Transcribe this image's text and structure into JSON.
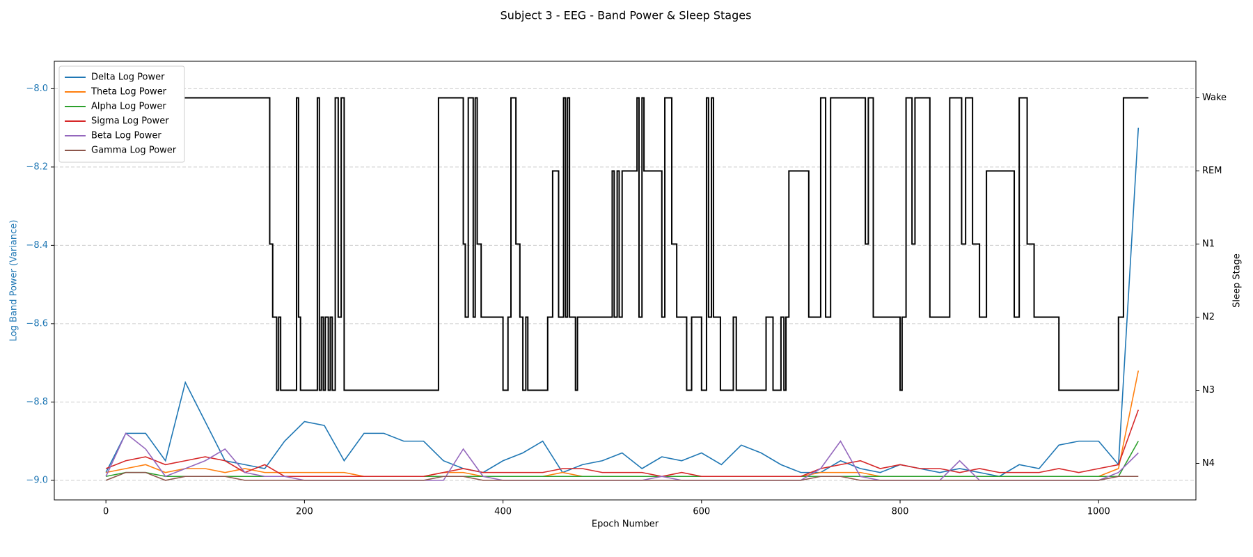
{
  "chart_data": {
    "type": "line",
    "title": "Subject 3 - EEG - Band Power & Sleep Stages",
    "x_label": "Epoch Number",
    "y_label": "Log Band Power (Variance)",
    "y2_label": "Sleep Stage",
    "y_label_color": "#1f77b4",
    "grid": true,
    "legend": "upper-left",
    "xlim": [
      -52,
      1098
    ],
    "xticks": [
      0,
      200,
      400,
      600,
      800,
      1000
    ],
    "ylim": [
      -9.05,
      -7.93
    ],
    "yticks": [
      {
        "value": -9.0,
        "label": "−9.0"
      },
      {
        "value": -8.8,
        "label": "−8.8"
      },
      {
        "value": -8.6,
        "label": "−8.6"
      },
      {
        "value": -8.4,
        "label": "−8.4"
      },
      {
        "value": -8.2,
        "label": "−8.2"
      },
      {
        "value": -8.0,
        "label": "−8.0"
      }
    ],
    "y2lim": [
      -0.5,
      5.5
    ],
    "y2ticks": [
      {
        "value": 0,
        "label": "N4"
      },
      {
        "value": 1,
        "label": "N3"
      },
      {
        "value": 2,
        "label": "N2"
      },
      {
        "value": 3,
        "label": "N1"
      },
      {
        "value": 4,
        "label": "REM"
      },
      {
        "value": 5,
        "label": "Wake"
      }
    ],
    "x": [
      0,
      20,
      40,
      60,
      80,
      100,
      120,
      140,
      160,
      180,
      200,
      220,
      240,
      260,
      280,
      300,
      320,
      340,
      360,
      380,
      400,
      420,
      440,
      460,
      480,
      500,
      520,
      540,
      560,
      580,
      600,
      620,
      640,
      660,
      680,
      700,
      720,
      740,
      760,
      780,
      800,
      820,
      840,
      860,
      880,
      900,
      920,
      940,
      960,
      980,
      1000,
      1020,
      1040
    ],
    "series": [
      {
        "name": "Delta Log Power",
        "color": "#1f77b4",
        "values": [
          -8.98,
          -8.88,
          -8.88,
          -8.95,
          -8.75,
          -8.85,
          -8.95,
          -8.96,
          -8.97,
          -8.9,
          -8.85,
          -8.86,
          -8.95,
          -8.88,
          -8.88,
          -8.9,
          -8.9,
          -8.95,
          -8.97,
          -8.98,
          -8.95,
          -8.93,
          -8.9,
          -8.98,
          -8.96,
          -8.95,
          -8.93,
          -8.97,
          -8.94,
          -8.95,
          -8.93,
          -8.96,
          -8.91,
          -8.93,
          -8.96,
          -8.98,
          -8.98,
          -8.95,
          -8.97,
          -8.98,
          -8.96,
          -8.97,
          -8.98,
          -8.97,
          -8.98,
          -8.99,
          -8.96,
          -8.97,
          -8.91,
          -8.9,
          -8.9,
          -8.96,
          -8.1
        ]
      },
      {
        "name": "Theta Log Power",
        "color": "#ff7f0e",
        "values": [
          -8.98,
          -8.97,
          -8.96,
          -8.98,
          -8.97,
          -8.97,
          -8.98,
          -8.97,
          -8.98,
          -8.98,
          -8.98,
          -8.98,
          -8.98,
          -8.99,
          -8.99,
          -8.99,
          -8.99,
          -8.98,
          -8.98,
          -8.99,
          -8.99,
          -8.99,
          -8.99,
          -8.98,
          -8.99,
          -8.99,
          -8.99,
          -8.99,
          -8.99,
          -8.99,
          -8.99,
          -8.99,
          -8.99,
          -8.99,
          -8.99,
          -8.99,
          -8.98,
          -8.98,
          -8.98,
          -8.99,
          -8.99,
          -8.99,
          -8.99,
          -8.99,
          -8.99,
          -8.99,
          -8.99,
          -8.99,
          -8.99,
          -8.99,
          -8.99,
          -8.97,
          -8.72
        ]
      },
      {
        "name": "Alpha Log Power",
        "color": "#2ca02c",
        "values": [
          -8.99,
          -8.98,
          -8.98,
          -8.99,
          -8.99,
          -8.99,
          -8.99,
          -8.99,
          -8.99,
          -8.99,
          -8.99,
          -8.99,
          -8.99,
          -8.99,
          -8.99,
          -8.99,
          -8.99,
          -8.99,
          -8.99,
          -8.99,
          -8.99,
          -8.99,
          -8.99,
          -8.99,
          -8.99,
          -8.99,
          -8.99,
          -8.99,
          -8.99,
          -8.99,
          -8.99,
          -8.99,
          -8.99,
          -8.99,
          -8.99,
          -8.99,
          -8.99,
          -8.99,
          -8.99,
          -8.99,
          -8.99,
          -8.99,
          -8.99,
          -8.99,
          -8.99,
          -8.99,
          -8.99,
          -8.99,
          -8.99,
          -8.99,
          -8.99,
          -8.99,
          -8.9
        ]
      },
      {
        "name": "Sigma Log Power",
        "color": "#d62728",
        "values": [
          -8.97,
          -8.95,
          -8.94,
          -8.96,
          -8.95,
          -8.94,
          -8.95,
          -8.98,
          -8.96,
          -8.99,
          -8.99,
          -8.99,
          -8.99,
          -8.99,
          -8.99,
          -8.99,
          -8.99,
          -8.98,
          -8.97,
          -8.98,
          -8.98,
          -8.98,
          -8.98,
          -8.97,
          -8.97,
          -8.98,
          -8.98,
          -8.98,
          -8.99,
          -8.98,
          -8.99,
          -8.99,
          -8.99,
          -8.99,
          -8.99,
          -8.99,
          -8.97,
          -8.96,
          -8.95,
          -8.97,
          -8.96,
          -8.97,
          -8.97,
          -8.98,
          -8.97,
          -8.98,
          -8.98,
          -8.98,
          -8.97,
          -8.98,
          -8.97,
          -8.96,
          -8.82
        ]
      },
      {
        "name": "Beta Log Power",
        "color": "#9467bd",
        "values": [
          -8.99,
          -8.88,
          -8.92,
          -8.99,
          -8.97,
          -8.95,
          -8.92,
          -8.98,
          -8.99,
          -8.99,
          -9.0,
          -9.0,
          -9.0,
          -9.0,
          -9.0,
          -9.0,
          -9.0,
          -9.0,
          -8.92,
          -8.99,
          -9.0,
          -9.0,
          -9.0,
          -9.0,
          -9.0,
          -9.0,
          -9.0,
          -9.0,
          -8.99,
          -9.0,
          -9.0,
          -9.0,
          -9.0,
          -9.0,
          -9.0,
          -9.0,
          -8.97,
          -8.9,
          -8.99,
          -9.0,
          -9.0,
          -9.0,
          -9.0,
          -8.95,
          -9.0,
          -9.0,
          -9.0,
          -9.0,
          -9.0,
          -9.0,
          -9.0,
          -8.98,
          -8.93
        ]
      },
      {
        "name": "Gamma Log Power",
        "color": "#8c564b",
        "values": [
          -9.0,
          -8.98,
          -8.98,
          -9.0,
          -8.99,
          -8.99,
          -8.99,
          -9.0,
          -9.0,
          -9.0,
          -9.0,
          -9.0,
          -9.0,
          -9.0,
          -9.0,
          -9.0,
          -9.0,
          -8.99,
          -8.99,
          -9.0,
          -9.0,
          -9.0,
          -9.0,
          -9.0,
          -9.0,
          -9.0,
          -9.0,
          -9.0,
          -9.0,
          -9.0,
          -9.0,
          -9.0,
          -9.0,
          -9.0,
          -9.0,
          -9.0,
          -8.99,
          -8.99,
          -9.0,
          -9.0,
          -9.0,
          -9.0,
          -9.0,
          -9.0,
          -9.0,
          -9.0,
          -9.0,
          -9.0,
          -9.0,
          -9.0,
          -9.0,
          -8.99,
          -8.99
        ]
      }
    ],
    "hypnogram": {
      "axis": "y2",
      "color": "#000000",
      "x": [
        0,
        165,
        168,
        172,
        174,
        176,
        192,
        194,
        196,
        213,
        215,
        217,
        219,
        221,
        224,
        226,
        228,
        231,
        234,
        237,
        240,
        335,
        360,
        362,
        365,
        370,
        372,
        374,
        378,
        400,
        405,
        408,
        413,
        417,
        420,
        423,
        425,
        445,
        450,
        456,
        461,
        463,
        465,
        467,
        473,
        475,
        510,
        512,
        515,
        517,
        520,
        535,
        537,
        540,
        542,
        560,
        563,
        570,
        575,
        585,
        590,
        600,
        605,
        607,
        610,
        612,
        619,
        632,
        635,
        665,
        672,
        680,
        683,
        685,
        688,
        708,
        720,
        725,
        730,
        765,
        768,
        773,
        800,
        802,
        806,
        812,
        815,
        830,
        850,
        862,
        866,
        873,
        880,
        887,
        915,
        920,
        928,
        935,
        960,
        1020,
        1025,
        1050
      ],
      "values": [
        5,
        3,
        2,
        1,
        2,
        1,
        5,
        2,
        1,
        5,
        1,
        2,
        1,
        2,
        1,
        2,
        1,
        5,
        2,
        5,
        1,
        5,
        3,
        2,
        5,
        2,
        5,
        3,
        2,
        1,
        2,
        5,
        3,
        2,
        1,
        2,
        1,
        2,
        4,
        2,
        5,
        2,
        5,
        2,
        1,
        2,
        4,
        2,
        4,
        2,
        4,
        5,
        2,
        5,
        4,
        2,
        5,
        3,
        2,
        1,
        2,
        1,
        5,
        2,
        5,
        2,
        1,
        2,
        1,
        2,
        1,
        2,
        1,
        2,
        4,
        2,
        5,
        2,
        5,
        3,
        5,
        2,
        1,
        2,
        5,
        3,
        5,
        2,
        5,
        3,
        5,
        3,
        2,
        4,
        2,
        5,
        3,
        2,
        1,
        2,
        5,
        5
      ]
    }
  }
}
